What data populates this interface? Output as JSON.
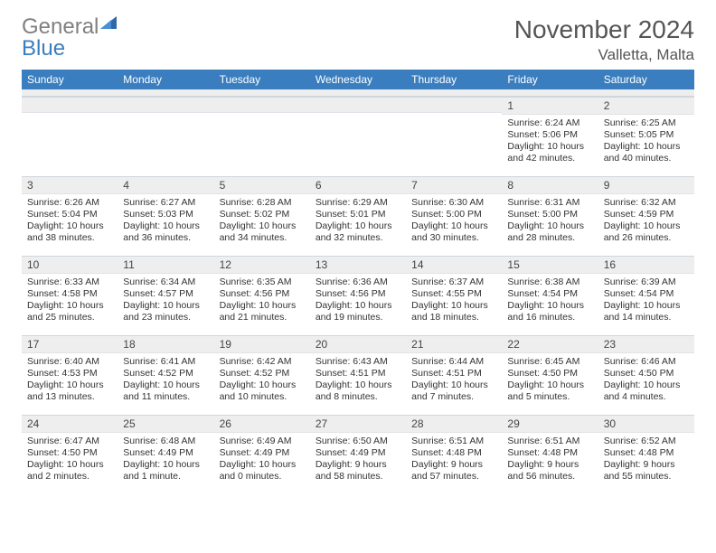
{
  "logo": {
    "word1": "General",
    "word2": "Blue"
  },
  "header": {
    "title": "November 2024",
    "location": "Valletta, Malta"
  },
  "colors": {
    "headerBar": "#3a7ebf",
    "dayNumBg": "#eeeeee",
    "rule": "#cfd6dd",
    "text": "#333333",
    "titleText": "#555555",
    "logoGray": "#808080",
    "logoBlue": "#3a7ebf",
    "background": "#ffffff"
  },
  "typography": {
    "titleSize": 28,
    "subtitleSize": 17,
    "dowSize": 12,
    "bodySize": 10.5
  },
  "daysOfWeek": [
    "Sunday",
    "Monday",
    "Tuesday",
    "Wednesday",
    "Thursday",
    "Friday",
    "Saturday"
  ],
  "cells": [
    {
      "n": "",
      "empty": true
    },
    {
      "n": "",
      "empty": true
    },
    {
      "n": "",
      "empty": true
    },
    {
      "n": "",
      "empty": true
    },
    {
      "n": "",
      "empty": true
    },
    {
      "n": "1",
      "sr": "6:24 AM",
      "ss": "5:06 PM",
      "dl": "10 hours and 42 minutes."
    },
    {
      "n": "2",
      "sr": "6:25 AM",
      "ss": "5:05 PM",
      "dl": "10 hours and 40 minutes."
    },
    {
      "n": "3",
      "sr": "6:26 AM",
      "ss": "5:04 PM",
      "dl": "10 hours and 38 minutes."
    },
    {
      "n": "4",
      "sr": "6:27 AM",
      "ss": "5:03 PM",
      "dl": "10 hours and 36 minutes."
    },
    {
      "n": "5",
      "sr": "6:28 AM",
      "ss": "5:02 PM",
      "dl": "10 hours and 34 minutes."
    },
    {
      "n": "6",
      "sr": "6:29 AM",
      "ss": "5:01 PM",
      "dl": "10 hours and 32 minutes."
    },
    {
      "n": "7",
      "sr": "6:30 AM",
      "ss": "5:00 PM",
      "dl": "10 hours and 30 minutes."
    },
    {
      "n": "8",
      "sr": "6:31 AM",
      "ss": "5:00 PM",
      "dl": "10 hours and 28 minutes."
    },
    {
      "n": "9",
      "sr": "6:32 AM",
      "ss": "4:59 PM",
      "dl": "10 hours and 26 minutes."
    },
    {
      "n": "10",
      "sr": "6:33 AM",
      "ss": "4:58 PM",
      "dl": "10 hours and 25 minutes."
    },
    {
      "n": "11",
      "sr": "6:34 AM",
      "ss": "4:57 PM",
      "dl": "10 hours and 23 minutes."
    },
    {
      "n": "12",
      "sr": "6:35 AM",
      "ss": "4:56 PM",
      "dl": "10 hours and 21 minutes."
    },
    {
      "n": "13",
      "sr": "6:36 AM",
      "ss": "4:56 PM",
      "dl": "10 hours and 19 minutes."
    },
    {
      "n": "14",
      "sr": "6:37 AM",
      "ss": "4:55 PM",
      "dl": "10 hours and 18 minutes."
    },
    {
      "n": "15",
      "sr": "6:38 AM",
      "ss": "4:54 PM",
      "dl": "10 hours and 16 minutes."
    },
    {
      "n": "16",
      "sr": "6:39 AM",
      "ss": "4:54 PM",
      "dl": "10 hours and 14 minutes."
    },
    {
      "n": "17",
      "sr": "6:40 AM",
      "ss": "4:53 PM",
      "dl": "10 hours and 13 minutes."
    },
    {
      "n": "18",
      "sr": "6:41 AM",
      "ss": "4:52 PM",
      "dl": "10 hours and 11 minutes."
    },
    {
      "n": "19",
      "sr": "6:42 AM",
      "ss": "4:52 PM",
      "dl": "10 hours and 10 minutes."
    },
    {
      "n": "20",
      "sr": "6:43 AM",
      "ss": "4:51 PM",
      "dl": "10 hours and 8 minutes."
    },
    {
      "n": "21",
      "sr": "6:44 AM",
      "ss": "4:51 PM",
      "dl": "10 hours and 7 minutes."
    },
    {
      "n": "22",
      "sr": "6:45 AM",
      "ss": "4:50 PM",
      "dl": "10 hours and 5 minutes."
    },
    {
      "n": "23",
      "sr": "6:46 AM",
      "ss": "4:50 PM",
      "dl": "10 hours and 4 minutes."
    },
    {
      "n": "24",
      "sr": "6:47 AM",
      "ss": "4:50 PM",
      "dl": "10 hours and 2 minutes."
    },
    {
      "n": "25",
      "sr": "6:48 AM",
      "ss": "4:49 PM",
      "dl": "10 hours and 1 minute."
    },
    {
      "n": "26",
      "sr": "6:49 AM",
      "ss": "4:49 PM",
      "dl": "10 hours and 0 minutes."
    },
    {
      "n": "27",
      "sr": "6:50 AM",
      "ss": "4:49 PM",
      "dl": "9 hours and 58 minutes."
    },
    {
      "n": "28",
      "sr": "6:51 AM",
      "ss": "4:48 PM",
      "dl": "9 hours and 57 minutes."
    },
    {
      "n": "29",
      "sr": "6:51 AM",
      "ss": "4:48 PM",
      "dl": "9 hours and 56 minutes."
    },
    {
      "n": "30",
      "sr": "6:52 AM",
      "ss": "4:48 PM",
      "dl": "9 hours and 55 minutes."
    }
  ],
  "labels": {
    "sunrise": "Sunrise: ",
    "sunset": "Sunset: ",
    "daylight": "Daylight: "
  }
}
